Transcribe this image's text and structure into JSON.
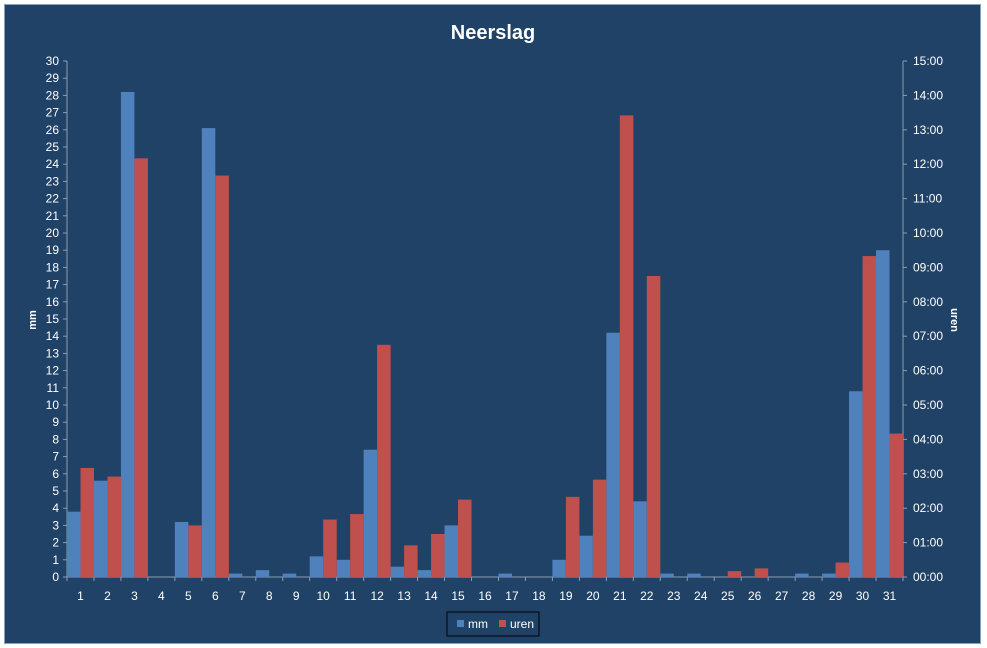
{
  "chart_data": {
    "type": "bar",
    "title": "Neerslag",
    "ylabel": "mm",
    "y2label": "uren",
    "ylim": [
      0,
      30
    ],
    "y2lim": [
      0,
      15
    ],
    "categories": [
      "1",
      "2",
      "3",
      "4",
      "5",
      "6",
      "7",
      "8",
      "9",
      "10",
      "11",
      "12",
      "13",
      "14",
      "15",
      "16",
      "17",
      "18",
      "19",
      "20",
      "21",
      "22",
      "23",
      "24",
      "25",
      "26",
      "27",
      "28",
      "29",
      "30",
      "31"
    ],
    "y_ticks": [
      "0",
      "1",
      "2",
      "3",
      "4",
      "5",
      "6",
      "7",
      "8",
      "9",
      "10",
      "11",
      "12",
      "13",
      "14",
      "15",
      "16",
      "17",
      "18",
      "19",
      "20",
      "21",
      "22",
      "23",
      "24",
      "25",
      "26",
      "27",
      "28",
      "29",
      "30"
    ],
    "y2_ticks": [
      "00:00",
      "01:00",
      "02:00",
      "03:00",
      "04:00",
      "05:00",
      "06:00",
      "07:00",
      "08:00",
      "09:00",
      "10:00",
      "11:00",
      "12:00",
      "13:00",
      "14:00",
      "15:00"
    ],
    "series": [
      {
        "name": "mm",
        "axis": "left",
        "color": "#4f81bd",
        "values": [
          3.8,
          5.6,
          28.2,
          0,
          3.2,
          26.1,
          0.2,
          0.4,
          0.2,
          1.2,
          1.0,
          7.4,
          0.6,
          0.4,
          3.0,
          0,
          0.2,
          0,
          1.0,
          2.4,
          14.2,
          4.4,
          0.2,
          0.2,
          0,
          0,
          0,
          0.2,
          0.2,
          10.8,
          19.0
        ]
      },
      {
        "name": "uren",
        "axis": "right",
        "color": "#c0504d",
        "values": [
          3.17,
          2.92,
          12.17,
          0,
          1.5,
          11.67,
          0,
          0,
          0,
          1.67,
          1.83,
          6.75,
          0.92,
          1.25,
          2.25,
          0,
          0,
          0,
          2.33,
          2.83,
          13.42,
          8.75,
          0,
          0,
          0.17,
          0.25,
          0,
          0,
          0.42,
          9.33,
          4.17
        ]
      }
    ],
    "legend": "bottom"
  }
}
